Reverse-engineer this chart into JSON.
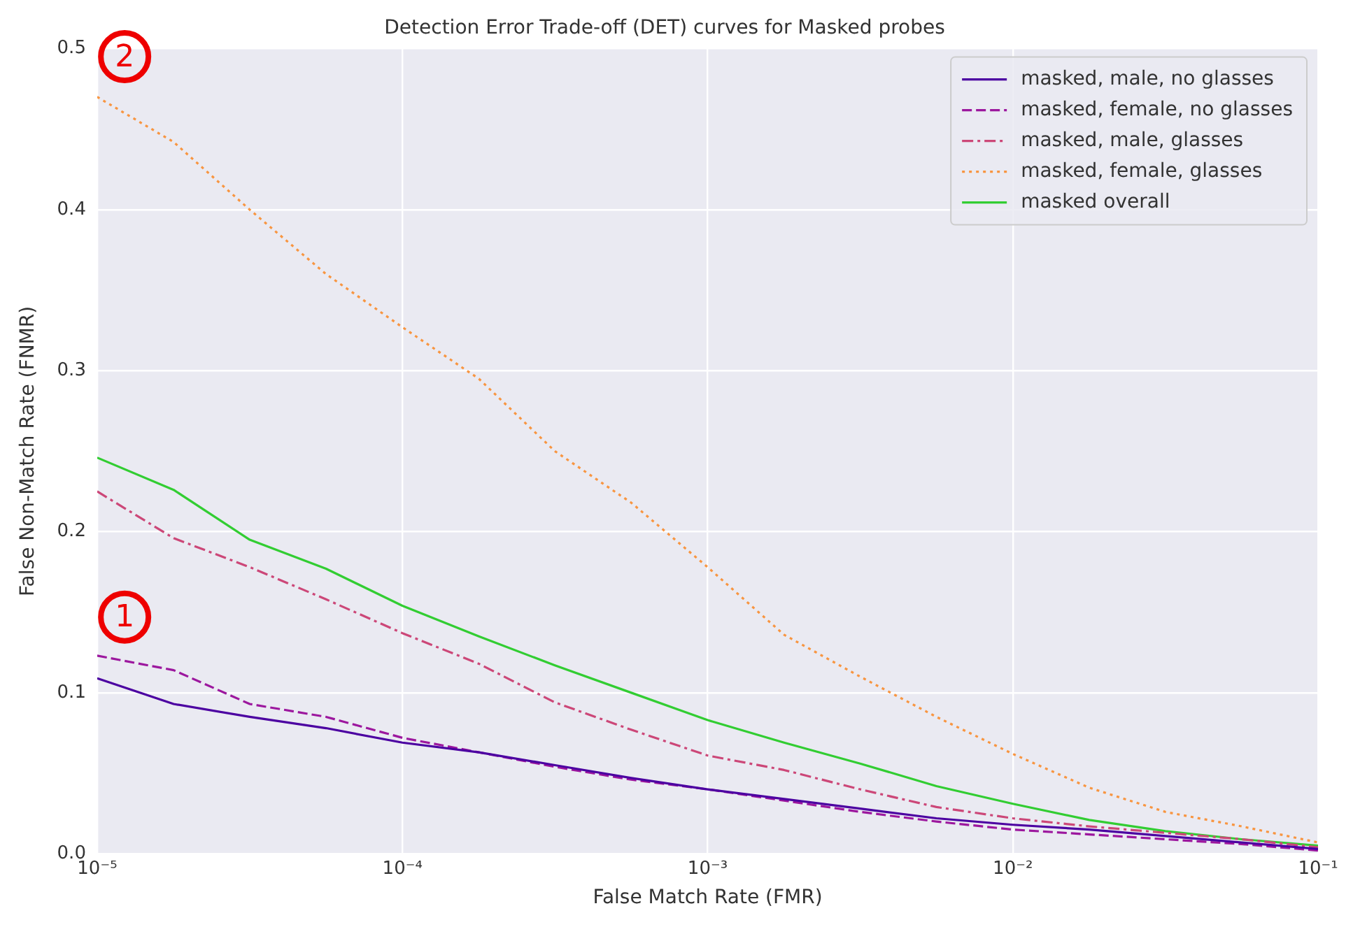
{
  "chart_data": {
    "type": "line",
    "title": "Detection Error Trade-off (DET) curves for Masked probes",
    "xlabel": "False Match Rate (FMR)",
    "ylabel": "False Non-Match Rate (FNMR)",
    "x": [
      1e-05,
      1.78e-05,
      3.16e-05,
      5.62e-05,
      0.0001,
      0.000178,
      0.000316,
      0.000562,
      0.001,
      0.00178,
      0.00316,
      0.00562,
      0.01,
      0.0178,
      0.0316,
      0.0562,
      0.1
    ],
    "series": [
      {
        "name": "masked, male, no glasses",
        "color": "#4c02a1",
        "line_style": "solid",
        "values": [
          0.109,
          0.093,
          0.085,
          0.078,
          0.069,
          0.063,
          0.055,
          0.047,
          0.04,
          0.034,
          0.028,
          0.022,
          0.018,
          0.015,
          0.011,
          0.007,
          0.003
        ]
      },
      {
        "name": "masked, female, no glasses",
        "color": "#9c179e",
        "line_style": "dashed",
        "values": [
          0.123,
          0.114,
          0.093,
          0.085,
          0.072,
          0.063,
          0.054,
          0.046,
          0.04,
          0.033,
          0.026,
          0.02,
          0.015,
          0.012,
          0.009,
          0.006,
          0.002
        ]
      },
      {
        "name": "masked, male, glasses",
        "color": "#cc4778",
        "line_style": "dashdot",
        "values": [
          0.225,
          0.196,
          0.178,
          0.158,
          0.137,
          0.118,
          0.094,
          0.077,
          0.061,
          0.052,
          0.04,
          0.029,
          0.022,
          0.017,
          0.013,
          0.009,
          0.004
        ]
      },
      {
        "name": "masked, female, glasses",
        "color": "#f89540",
        "line_style": "dotted",
        "values": [
          0.47,
          0.442,
          0.4,
          0.36,
          0.327,
          0.295,
          0.25,
          0.218,
          0.178,
          0.136,
          0.11,
          0.085,
          0.062,
          0.041,
          0.026,
          0.017,
          0.007
        ]
      },
      {
        "name": "masked overall",
        "color": "#32cd32",
        "line_style": "solid",
        "values": [
          0.246,
          0.226,
          0.195,
          0.177,
          0.154,
          0.135,
          0.117,
          0.1,
          0.083,
          0.069,
          0.056,
          0.042,
          0.031,
          0.021,
          0.014,
          0.009,
          0.005
        ]
      }
    ],
    "log": "x",
    "xlim": [
      1e-05,
      0.1
    ],
    "xticks": [
      {
        "value": 1e-05,
        "label": "10⁻⁵"
      },
      {
        "value": 0.0001,
        "label": "10⁻⁴"
      },
      {
        "value": 0.001,
        "label": "10⁻³"
      },
      {
        "value": 0.01,
        "label": "10⁻²"
      },
      {
        "value": 0.1,
        "label": "10⁻¹"
      }
    ],
    "ylim": [
      0,
      0.5
    ],
    "yticks": [
      {
        "value": 0,
        "label": "0.0"
      },
      {
        "value": 0.1,
        "label": "0.1"
      },
      {
        "value": 0.2,
        "label": "0.2"
      },
      {
        "value": 0.3,
        "label": "0.3"
      },
      {
        "value": 0.4,
        "label": "0.4"
      },
      {
        "value": 0.5,
        "label": "0.5"
      }
    ],
    "grid": true,
    "legend": "top right",
    "annotations": [
      {
        "text": "1",
        "x": 1.23e-05,
        "y": 0.147
      },
      {
        "text": "2",
        "x": 1.23e-05,
        "y": 0.495
      }
    ]
  }
}
